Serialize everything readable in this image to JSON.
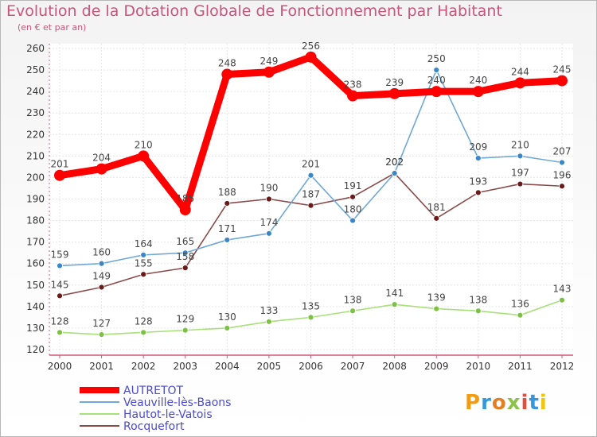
{
  "title": "Evolution de la Dotation Globale de Fonctionnement par Habitant",
  "subtitle": "(en € et par an)",
  "logo": {
    "text": "Proxiti",
    "colors": [
      "#f39c12",
      "#3498db",
      "#e67e22",
      "#8bc34a",
      "#e74c3c",
      "#3498db",
      "#f1c40f"
    ]
  },
  "chart_data": {
    "type": "line",
    "title": "Evolution de la Dotation Globale de Fonctionnement par Habitant",
    "subtitle": "(en € et par an)",
    "x": [
      "2000",
      "2001",
      "2002",
      "2003",
      "2004",
      "2005",
      "2006",
      "2007",
      "2008",
      "2009",
      "2010",
      "2011",
      "2012"
    ],
    "ylim": [
      120,
      260
    ],
    "yticks": [
      120,
      130,
      140,
      150,
      160,
      170,
      180,
      190,
      200,
      210,
      220,
      230,
      240,
      250,
      260
    ],
    "grid": true,
    "legend_position": "bottom-left",
    "series": [
      {
        "name": "AUTRETOT",
        "color": "#ff0000",
        "values": [
          201,
          204,
          210,
          185,
          248,
          249,
          256,
          238,
          239,
          240,
          240,
          244,
          245
        ]
      },
      {
        "name": "Veauville-lès-Baons",
        "color": "#6fa8d6",
        "marker": "#3a86c8",
        "values": [
          159,
          160,
          164,
          165,
          171,
          174,
          201,
          180,
          202,
          250,
          209,
          210,
          207
        ]
      },
      {
        "name": "Hautot-le-Vatois",
        "color": "#a8e07a",
        "marker": "#7cc143",
        "values": [
          128,
          127,
          128,
          129,
          130,
          133,
          135,
          138,
          141,
          139,
          138,
          136,
          143
        ]
      },
      {
        "name": "Rocquefort",
        "color": "#8b4a4a",
        "marker": "#6b1a1a",
        "values": [
          145,
          149,
          155,
          158,
          188,
          190,
          187,
          191,
          202,
          181,
          193,
          197,
          196
        ]
      }
    ]
  }
}
